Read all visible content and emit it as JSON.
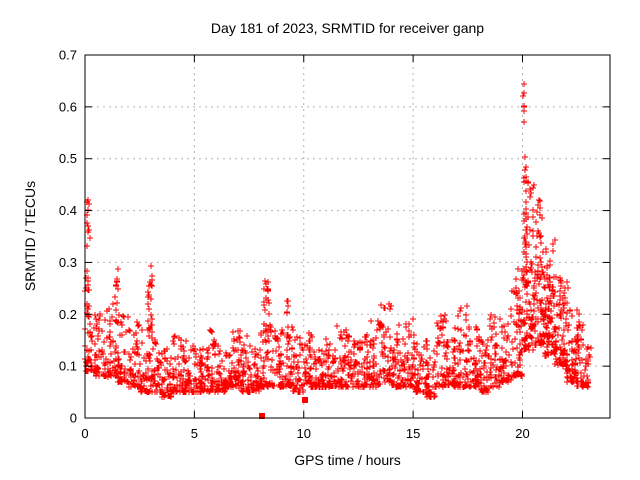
{
  "chart_data": {
    "type": "scatter",
    "title": "Day 181 of 2023, SRMTID for receiver ganp",
    "xlabel": "GPS time / hours",
    "ylabel": "SRMTID / TECUs",
    "series_name": "SRMTID",
    "xlim": [
      0,
      24
    ],
    "ylim": [
      0,
      0.7
    ],
    "xticks": [
      0,
      5,
      10,
      15,
      20
    ],
    "xtick_labels": [
      "0",
      "5",
      "10",
      "15",
      "20"
    ],
    "yticks": [
      0,
      0.1,
      0.2,
      0.3,
      0.4,
      0.5,
      0.6,
      0.7
    ],
    "ytick_labels": [
      "0",
      "0.1",
      "0.2",
      "0.3",
      "0.4",
      "0.5",
      "0.6",
      "0.7"
    ],
    "grid": true,
    "legend": "none",
    "marker": "plus",
    "marker_color": "#ff0000",
    "axis_color": "#000000",
    "grid_color": "#b4b4b4",
    "background_color": "#ffffff",
    "x_data_range": [
      0.02,
      23.2
    ],
    "notable_points": [
      {
        "x": 0.15,
        "y": 0.43,
        "note": "start-of-day spike"
      },
      {
        "x": 1.45,
        "y": 0.31,
        "note": "minor spike"
      },
      {
        "x": 2.98,
        "y": 0.29,
        "note": "minor spike"
      },
      {
        "x": 8.32,
        "y": 0.28,
        "note": "minor spike"
      },
      {
        "x": 20.1,
        "y": 0.65,
        "note": "largest spike"
      }
    ],
    "outlier_squares": [
      [
        8.1,
        0.004
      ],
      [
        10.05,
        0.035
      ]
    ],
    "bin_width": 0.5,
    "points_per_bin": 44,
    "band_bins": [
      [
        0.0,
        0.09,
        0.22
      ],
      [
        0.5,
        0.08,
        0.2
      ],
      [
        1.0,
        0.08,
        0.22
      ],
      [
        1.5,
        0.07,
        0.2
      ],
      [
        2.0,
        0.06,
        0.2
      ],
      [
        2.5,
        0.05,
        0.18
      ],
      [
        3.0,
        0.05,
        0.18
      ],
      [
        3.5,
        0.04,
        0.14
      ],
      [
        4.0,
        0.05,
        0.16
      ],
      [
        4.5,
        0.05,
        0.15
      ],
      [
        5.0,
        0.05,
        0.15
      ],
      [
        5.5,
        0.05,
        0.17
      ],
      [
        6.0,
        0.05,
        0.16
      ],
      [
        6.5,
        0.06,
        0.17
      ],
      [
        7.0,
        0.05,
        0.17
      ],
      [
        7.5,
        0.05,
        0.15
      ],
      [
        8.0,
        0.06,
        0.18
      ],
      [
        8.5,
        0.06,
        0.17
      ],
      [
        9.0,
        0.06,
        0.18
      ],
      [
        9.5,
        0.05,
        0.16
      ],
      [
        10.0,
        0.06,
        0.17
      ],
      [
        10.5,
        0.06,
        0.15
      ],
      [
        11.0,
        0.06,
        0.16
      ],
      [
        11.5,
        0.06,
        0.19
      ],
      [
        12.0,
        0.06,
        0.16
      ],
      [
        12.5,
        0.06,
        0.16
      ],
      [
        13.0,
        0.06,
        0.19
      ],
      [
        13.5,
        0.07,
        0.22
      ],
      [
        14.0,
        0.06,
        0.18
      ],
      [
        14.5,
        0.06,
        0.21
      ],
      [
        15.0,
        0.05,
        0.16
      ],
      [
        15.5,
        0.04,
        0.15
      ],
      [
        16.0,
        0.06,
        0.2
      ],
      [
        16.5,
        0.06,
        0.18
      ],
      [
        17.0,
        0.06,
        0.22
      ],
      [
        17.5,
        0.06,
        0.18
      ],
      [
        18.0,
        0.05,
        0.16
      ],
      [
        18.5,
        0.06,
        0.2
      ],
      [
        19.0,
        0.07,
        0.21
      ],
      [
        19.5,
        0.08,
        0.25
      ],
      [
        20.0,
        0.13,
        0.3
      ],
      [
        20.5,
        0.14,
        0.3
      ],
      [
        21.0,
        0.12,
        0.28
      ],
      [
        21.5,
        0.1,
        0.25
      ],
      [
        22.0,
        0.07,
        0.22
      ],
      [
        22.5,
        0.06,
        0.19
      ]
    ],
    "spike_columns": [
      [
        0.12,
        0.22,
        0.17,
        0.43,
        26
      ],
      [
        1.45,
        0.18,
        0.18,
        0.315,
        14
      ],
      [
        2.98,
        0.22,
        0.15,
        0.295,
        22
      ],
      [
        8.32,
        0.28,
        0.17,
        0.285,
        20
      ],
      [
        9.3,
        0.2,
        0.14,
        0.23,
        8
      ],
      [
        19.85,
        0.3,
        0.12,
        0.3,
        18
      ],
      [
        20.08,
        0.1,
        0.57,
        0.655,
        7
      ],
      [
        20.12,
        0.12,
        0.3,
        0.525,
        14
      ],
      [
        20.3,
        0.45,
        0.17,
        0.475,
        55
      ],
      [
        20.85,
        0.55,
        0.14,
        0.43,
        52
      ],
      [
        21.35,
        0.5,
        0.12,
        0.345,
        42
      ],
      [
        21.85,
        0.5,
        0.1,
        0.27,
        28
      ],
      [
        22.4,
        0.45,
        0.07,
        0.21,
        18
      ],
      [
        23.0,
        0.25,
        0.06,
        0.16,
        10
      ]
    ]
  }
}
